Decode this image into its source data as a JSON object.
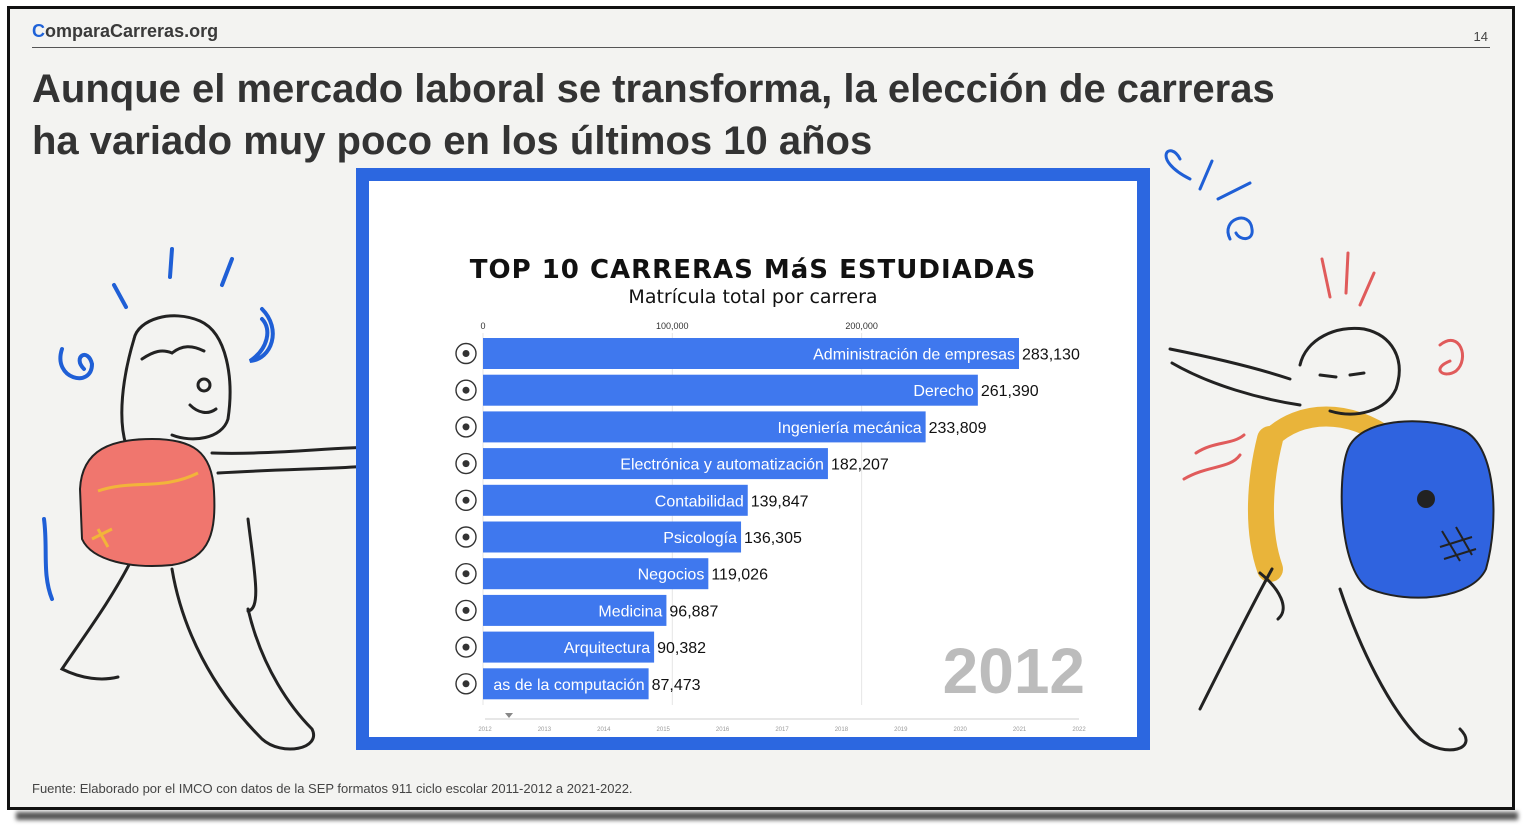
{
  "header": {
    "logo_prefix": "C",
    "logo_rest": "omparaCarreras.org",
    "page_number": "14"
  },
  "headline": {
    "line1": "Aunque el mercado laboral se transforma, la elección de carreras",
    "line2": "ha variado muy poco en los últimos 10 años"
  },
  "footer": {
    "source": "Fuente: Elaborado por el IMCO con datos de la SEP formatos 911 ciclo escolar 2011-2012 a 2021-2022."
  },
  "colors": {
    "bar": "#3f78ee",
    "frame": "#2c67e0",
    "logo_accent": "#1f62d8"
  },
  "chart_data": {
    "type": "bar",
    "orientation": "horizontal",
    "title": "TOP 10 CARRERAS MáS ESTUDIADAS",
    "subtitle": "Matrícula total por carrera",
    "year_label": "2012",
    "xlim": [
      0,
      300000
    ],
    "x_ticks": [
      {
        "value": 0,
        "label": "0"
      },
      {
        "value": 100000,
        "label": "100,000"
      },
      {
        "value": 200000,
        "label": "200,000"
      }
    ],
    "categories": [
      "Administración de empresas",
      "Derecho",
      "Ingeniería mecánica",
      "Electrónica y automatización",
      "Contabilidad",
      "Psicología",
      "Negocios",
      "Medicina",
      "Arquitectura",
      "as de la computación"
    ],
    "values": [
      283130,
      261390,
      233809,
      182207,
      139847,
      136305,
      119026,
      96887,
      90382,
      87473
    ],
    "value_labels": [
      "283,130",
      "261,390",
      "233,809",
      "182,207",
      "139,847",
      "136,305",
      "119,026",
      "96,887",
      "90,382",
      "87,473"
    ],
    "icons": [
      "gear-head-icon",
      "scales-icon",
      "gears-icon",
      "circuit-icon",
      "calculator-icon",
      "brain-head-icon",
      "handshake-icon",
      "caduceus-icon",
      "blueprint-icon",
      "computer-icon"
    ],
    "timeline": [
      "2012",
      "2013",
      "2014",
      "2015",
      "2016",
      "2017",
      "2018",
      "2019",
      "2020",
      "2021",
      "2022"
    ],
    "grid": true
  }
}
